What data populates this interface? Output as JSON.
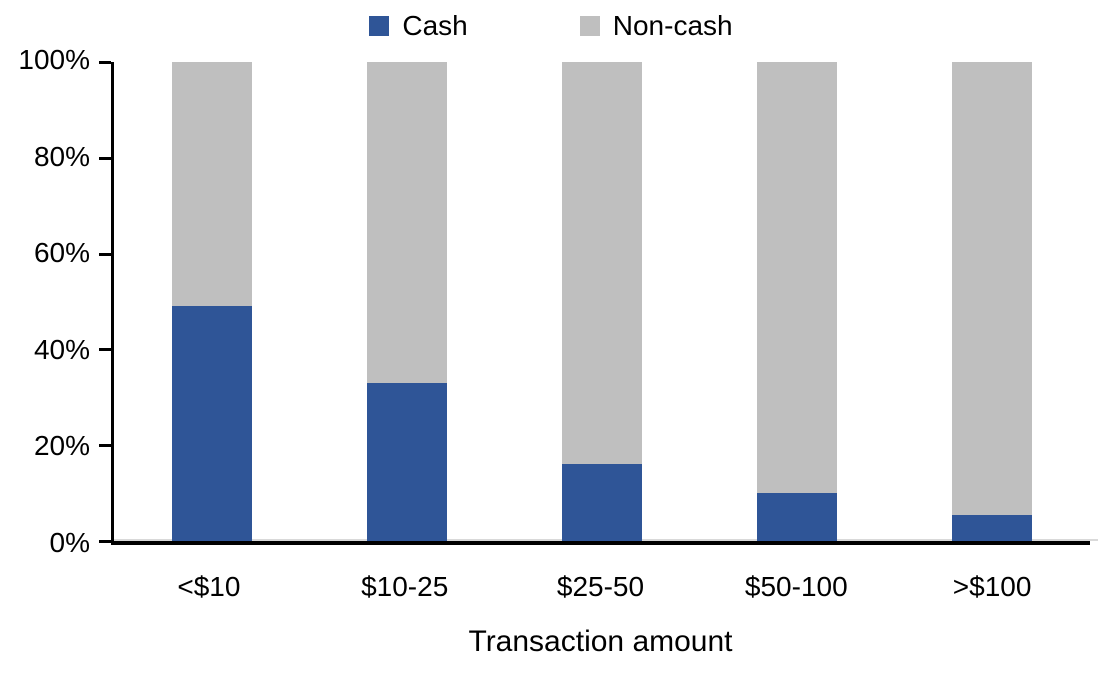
{
  "legend": {
    "items": [
      {
        "label": "Cash",
        "color": "#2F5597"
      },
      {
        "label": "Non-cash",
        "color": "#BFBFBF"
      }
    ]
  },
  "chart_data": {
    "type": "bar",
    "stacked": true,
    "title": "",
    "xlabel": "Transaction amount",
    "ylabel": "",
    "ylim": [
      0,
      100
    ],
    "yticks": [
      "0%",
      "20%",
      "40%",
      "60%",
      "80%",
      "100%"
    ],
    "grid": false,
    "legend_position": "top-center",
    "categories": [
      "<$10",
      "$10-25",
      "$25-50",
      "$50-100",
      ">$100"
    ],
    "series": [
      {
        "name": "Cash",
        "color": "#2F5597",
        "values": [
          49,
          33,
          16,
          10,
          5.5
        ]
      },
      {
        "name": "Non-cash",
        "color": "#BFBFBF",
        "values": [
          51,
          67,
          84,
          90,
          94.5
        ]
      }
    ]
  }
}
